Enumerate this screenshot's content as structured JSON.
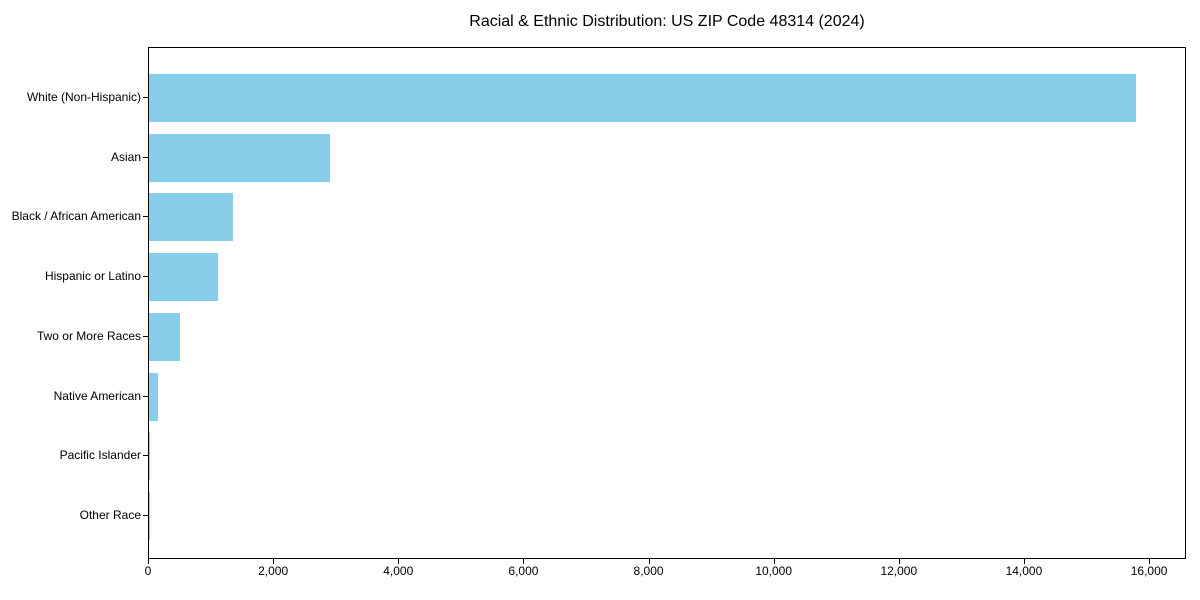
{
  "chart_data": {
    "type": "bar",
    "orientation": "horizontal",
    "title": "Racial & Ethnic Distribution: US ZIP Code 48314 (2024)",
    "xlabel": "",
    "ylabel": "",
    "categories": [
      "White (Non-Hispanic)",
      "Asian",
      "Black / African American",
      "Hispanic or Latino",
      "Two or More Races",
      "Native American",
      "Pacific Islander",
      "Other Race"
    ],
    "values": [
      15800,
      2900,
      1350,
      1100,
      500,
      150,
      20,
      10
    ],
    "xlim": [
      0,
      16590
    ],
    "xticks": [
      0,
      2000,
      4000,
      6000,
      8000,
      10000,
      12000,
      14000,
      16000
    ],
    "xtick_labels": [
      "0",
      "2,000",
      "4,000",
      "6,000",
      "8,000",
      "10,000",
      "12,000",
      "14,000",
      "16,000"
    ],
    "grid": false,
    "legend": null,
    "bar_color": "#87CEEB",
    "axis_color": "#000000",
    "text_color": "#000000",
    "background_color": "#ffffff"
  }
}
